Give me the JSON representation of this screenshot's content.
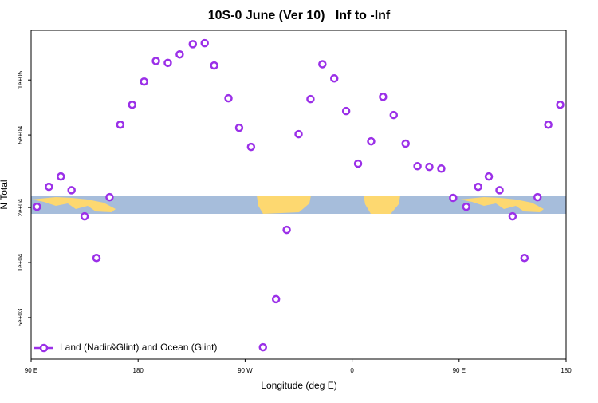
{
  "chart_data": {
    "type": "scatter",
    "title": "10S-0 June (Ver 10)   Inf to -Inf",
    "x_label": "Longitude (deg E)",
    "y_label": "N Total",
    "ylog": true,
    "grid": false,
    "legend": "bottom-left",
    "xlim": [
      90,
      540
    ],
    "xticks": [
      {
        "value": 90,
        "label": "90 E"
      },
      180,
      {
        "value": 270,
        "label": "90 W"
      },
      {
        "value": 360,
        "label": "0"
      },
      {
        "value": 450,
        "label": "90 E"
      },
      {
        "value": 540,
        "label": "180"
      }
    ],
    "ylim": [
      2960,
      187000
    ],
    "yticks": [
      {
        "value": 5000,
        "label": "5e+03"
      },
      {
        "value": 10000,
        "label": "1e+04"
      },
      {
        "value": 20000,
        "label": "2e+04"
      },
      {
        "value": 50000,
        "label": "5e+04"
      },
      {
        "value": 100000,
        "label": "1e+05"
      }
    ],
    "series": [
      {
        "name": "Land (Nadir&Glint) and Ocean (Glint)",
        "color": "#9b30e8",
        "x": [
          95,
          105,
          115,
          124,
          135,
          145,
          156,
          165,
          175,
          185,
          195,
          205,
          215,
          226,
          236,
          244,
          256,
          265,
          275,
          285,
          296,
          305,
          315,
          325,
          335,
          345,
          355,
          365,
          376,
          386,
          395,
          405,
          415,
          425,
          435,
          445,
          456,
          466,
          475,
          484,
          495,
          505,
          516,
          525,
          535
        ],
        "values": [
          20200,
          26000,
          29600,
          24900,
          17900,
          10600,
          22800,
          56900,
          73200,
          98000,
          127000,
          124000,
          138000,
          157000,
          159000,
          120000,
          79400,
          54700,
          43000,
          3440,
          6300,
          15100,
          50500,
          78600,
          122000,
          102000,
          67600,
          34800,
          46100,
          80900,
          64300,
          44800,
          33700,
          33400,
          32700,
          22600,
          20200,
          26000,
          29600,
          24900,
          17900,
          10600,
          22800,
          56900,
          73200
        ]
      }
    ]
  }
}
